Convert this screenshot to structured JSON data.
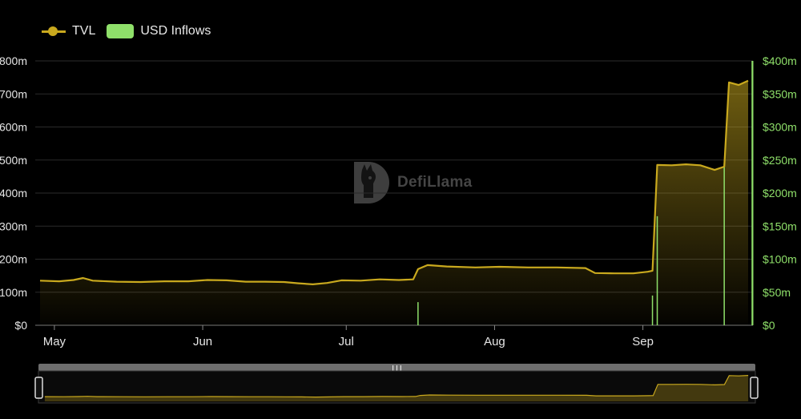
{
  "legend": {
    "tvl_label": "TVL",
    "inflows_label": "USD Inflows"
  },
  "watermark": "DefiLlama",
  "colors": {
    "tvl": "#c9a91e",
    "inflows": "#8fe06a",
    "grid": "#2b2b2b",
    "background": "#000000"
  },
  "chart_data": {
    "type": "line",
    "title": "",
    "xlabel": "",
    "ylabel": "",
    "x_tick_labels": [
      "May",
      "Jun",
      "Jul",
      "Aug",
      "Sep"
    ],
    "left_axis_ticks": [
      "$0",
      "100m",
      "200m",
      "300m",
      "400m",
      "500m",
      "600m",
      "700m",
      "800m"
    ],
    "right_axis_ticks": [
      "$0",
      "$50m",
      "$100m",
      "$150m",
      "$200m",
      "$250m",
      "$300m",
      "$350m",
      "$400m"
    ],
    "ylim_left": [
      0,
      800
    ],
    "ylim_right": [
      0,
      400
    ],
    "unit": "millions USD",
    "grid": true,
    "legend_position": "top-left",
    "series": [
      {
        "name": "TVL",
        "axis": "left",
        "style": "area-line",
        "points": [
          [
            "2023-04-28",
            135
          ],
          [
            "2023-05-02",
            133
          ],
          [
            "2023-05-05",
            137
          ],
          [
            "2023-05-07",
            143
          ],
          [
            "2023-05-09",
            135
          ],
          [
            "2023-05-14",
            132
          ],
          [
            "2023-05-19",
            131
          ],
          [
            "2023-05-24",
            133
          ],
          [
            "2023-05-29",
            133
          ],
          [
            "2023-06-02",
            137
          ],
          [
            "2023-06-06",
            136
          ],
          [
            "2023-06-10",
            132
          ],
          [
            "2023-06-14",
            132
          ],
          [
            "2023-06-18",
            131
          ],
          [
            "2023-06-21",
            127
          ],
          [
            "2023-06-24",
            124
          ],
          [
            "2023-06-27",
            128
          ],
          [
            "2023-06-30",
            136
          ],
          [
            "2023-07-04",
            135
          ],
          [
            "2023-07-08",
            139
          ],
          [
            "2023-07-12",
            137
          ],
          [
            "2023-07-15",
            139
          ],
          [
            "2023-07-16",
            170
          ],
          [
            "2023-07-18",
            182
          ],
          [
            "2023-07-22",
            178
          ],
          [
            "2023-07-28",
            175
          ],
          [
            "2023-08-02",
            177
          ],
          [
            "2023-08-08",
            175
          ],
          [
            "2023-08-14",
            175
          ],
          [
            "2023-08-20",
            173
          ],
          [
            "2023-08-22",
            158
          ],
          [
            "2023-08-26",
            157
          ],
          [
            "2023-08-30",
            157
          ],
          [
            "2023-09-02",
            162
          ],
          [
            "2023-09-03",
            165
          ],
          [
            "2023-09-04",
            485
          ],
          [
            "2023-09-07",
            484
          ],
          [
            "2023-09-10",
            487
          ],
          [
            "2023-09-13",
            484
          ],
          [
            "2023-09-16",
            470
          ],
          [
            "2023-09-18",
            480
          ],
          [
            "2023-09-19",
            735
          ],
          [
            "2023-09-21",
            727
          ],
          [
            "2023-09-23",
            740
          ]
        ]
      },
      {
        "name": "USD Inflows",
        "axis": "right",
        "style": "bar",
        "points": [
          [
            "2023-07-16",
            35
          ],
          [
            "2023-09-03",
            45
          ],
          [
            "2023-09-04",
            165
          ],
          [
            "2023-09-18",
            245
          ],
          [
            "2023-09-24",
            400
          ]
        ]
      }
    ]
  },
  "range_slider": {
    "handle_glyph": "|||"
  }
}
